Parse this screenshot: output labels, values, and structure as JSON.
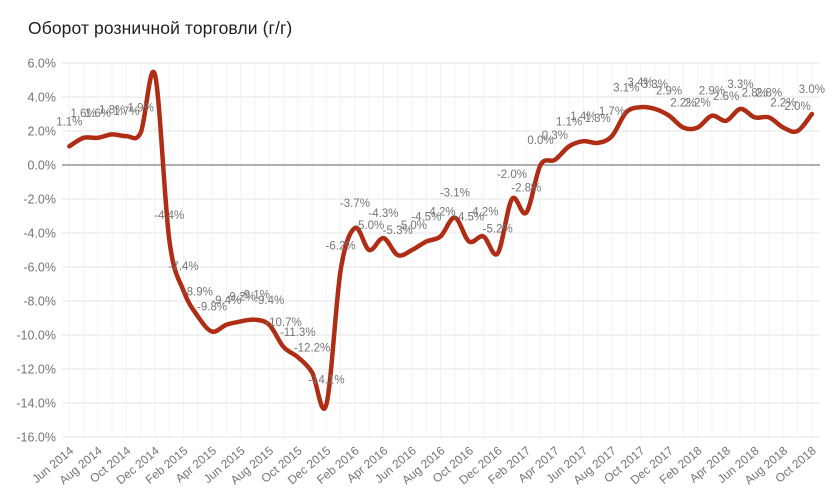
{
  "chart_data": {
    "type": "line",
    "title": "Оборот розничной торговли (г/г)",
    "xlabel": "",
    "ylabel": "",
    "ylim": [
      -16,
      6
    ],
    "grid": true,
    "legend_position": "none",
    "x_tick_every": 2,
    "series_name": "retail-turnover-yoy",
    "colors": {
      "line": "#ae2d14",
      "data_label": "#757575",
      "axis_label": "#757575",
      "gridline": "#e6e6e6",
      "minor_gridline": "#f3f3f3",
      "zero_line": "#5f5f5f",
      "title": "#1f1f1f",
      "background": "#ffffff"
    },
    "y_ticks": [
      "6.0%",
      "4.0%",
      "2.0%",
      "0.0%",
      "-2.0%",
      "-4.0%",
      "-6.0%",
      "-8.0%",
      "-10.0%",
      "-12.0%",
      "-14.0%",
      "-16.0%"
    ],
    "categories": [
      "Jun 2014",
      "Jul 2014",
      "Aug 2014",
      "Sep 2014",
      "Oct 2014",
      "Nov 2014",
      "Dec 2014",
      "Jan 2015",
      "Feb 2015",
      "Mar 2015",
      "Apr 2015",
      "May 2015",
      "Jun 2015",
      "Jul 2015",
      "Aug 2015",
      "Sep 2015",
      "Oct 2015",
      "Nov 2015",
      "Dec 2015",
      "Jan 2016",
      "Feb 2016",
      "Mar 2016",
      "Apr 2016",
      "May 2016",
      "Jun 2016",
      "Jul 2016",
      "Aug 2016",
      "Sep 2016",
      "Oct 2016",
      "Nov 2016",
      "Dec 2016",
      "Jan 2017",
      "Feb 2017",
      "Mar 2017",
      "Apr 2017",
      "May 2017",
      "Jun 2017",
      "Jul 2017",
      "Aug 2017",
      "Sep 2017",
      "Oct 2017",
      "Nov 2017",
      "Dec 2017",
      "Jan 2018",
      "Feb 2018",
      "Mar 2018",
      "Apr 2018",
      "May 2018",
      "Jun 2018",
      "Jul 2018",
      "Aug 2018",
      "Sep 2018",
      "Oct 2018"
    ],
    "values": [
      1.1,
      1.6,
      1.6,
      1.8,
      1.7,
      1.9,
      5.3,
      -4.4,
      -7.4,
      -8.9,
      -9.8,
      -9.4,
      -9.2,
      -9.1,
      -9.4,
      -10.7,
      -11.3,
      -12.2,
      -14.1,
      -6.2,
      -3.7,
      -5.0,
      -4.3,
      -5.3,
      -5.0,
      -4.5,
      -4.2,
      -3.1,
      -4.5,
      -4.2,
      -5.2,
      -2.0,
      -2.8,
      0.0,
      0.3,
      1.1,
      1.4,
      1.3,
      1.7,
      3.1,
      3.4,
      3.3,
      2.9,
      2.2,
      2.2,
      2.9,
      2.6,
      3.3,
      2.8,
      2.8,
      2.2,
      2.0,
      3.0
    ],
    "point_labels": [
      "1.1%",
      "1.6%",
      "1.6%",
      "1.8%",
      "1.7%",
      "1.9%",
      null,
      "-4.4%",
      "-7.4%",
      "-8.9%",
      "-9.8%",
      "-9.4%",
      "-9.2%",
      "-9.1%",
      "-9.4%",
      "-10.7%",
      "-11.3%",
      "-12.2%",
      "-14.1%",
      "-6.2%",
      "-3.7%",
      "-5.0%",
      "-4.3%",
      "-5.3%",
      "-5.0%",
      "-4.5%",
      "-4.2%",
      "-3.1%",
      "-4.5%",
      "-4.2%",
      "-5.2%",
      "-2.0%",
      "-2.8%",
      "0.0%",
      "0.3%",
      "1.1%",
      "1.4%",
      "1.3%",
      "1.7%",
      "3.1%",
      "3.4%",
      "3.3%",
      "2.9%",
      "2.2%",
      "2.2%",
      "2.9%",
      "2.6%",
      "3.3%",
      "2.8%",
      "2.8%",
      "2.2%",
      "2.0%",
      "3.0%"
    ]
  }
}
